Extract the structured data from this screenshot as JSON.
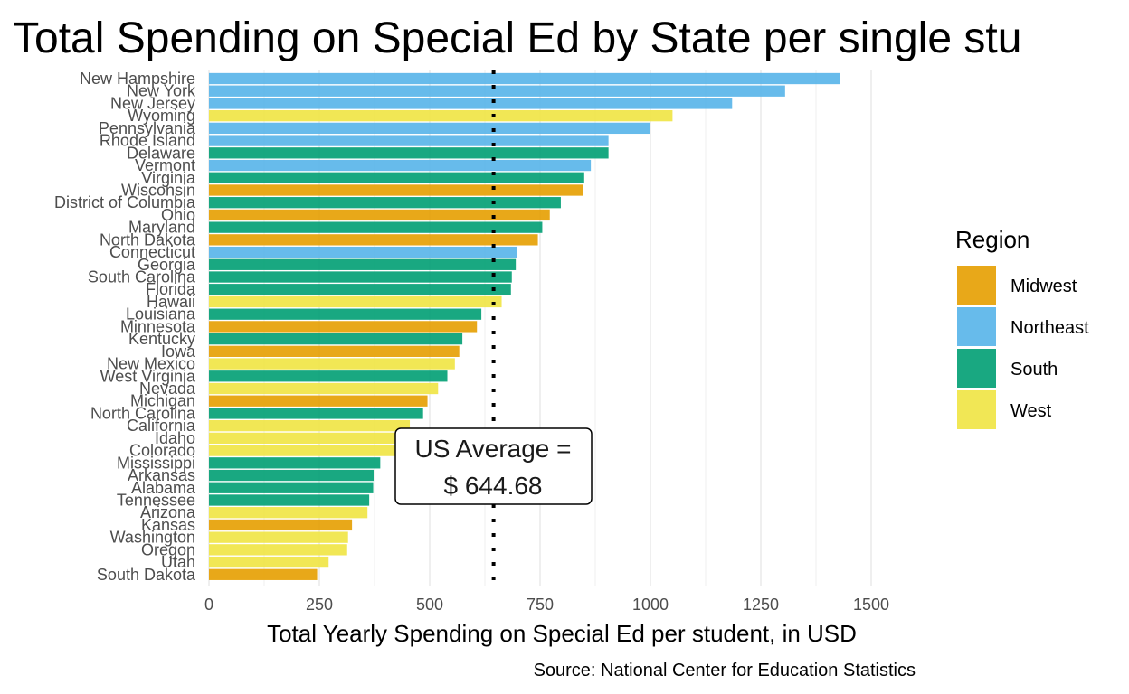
{
  "chart_data": {
    "type": "bar",
    "orientation": "horizontal",
    "title": "Total Spending on Special Ed by State per single stu",
    "xlabel": "Total Yearly Spending on Special Ed per student, in USD",
    "ylabel": "",
    "caption": "Source: National Center for Education Statistics",
    "xlim": [
      0,
      1500
    ],
    "x_ticks": [
      0,
      250,
      500,
      750,
      1000,
      1250,
      1500
    ],
    "x_tick_labels": [
      "0",
      "250",
      "500",
      "750",
      "1000",
      "1250",
      "1500"
    ],
    "grid": "vertical",
    "legend": {
      "title": "Region",
      "position": "right",
      "entries": [
        {
          "label": "Midwest",
          "color": "#E69F00"
        },
        {
          "label": "Northeast",
          "color": "#56B4E9"
        },
        {
          "label": "South",
          "color": "#009E73"
        },
        {
          "label": "West",
          "color": "#F0E442"
        }
      ]
    },
    "reference_line": {
      "value": 644.68,
      "style": "dotted",
      "label_line1": "US Average =",
      "label_line2": "$ 644.68"
    },
    "bars": [
      {
        "state": "New Hampshire",
        "region": "Northeast",
        "value": 1430
      },
      {
        "state": "New York",
        "region": "Northeast",
        "value": 1305
      },
      {
        "state": "New Jersey",
        "region": "Northeast",
        "value": 1185
      },
      {
        "state": "Wyoming",
        "region": "West",
        "value": 1050
      },
      {
        "state": "Pennsylvania",
        "region": "Northeast",
        "value": 1000
      },
      {
        "state": "Rhode Island",
        "region": "Northeast",
        "value": 905
      },
      {
        "state": "Delaware",
        "region": "South",
        "value": 905
      },
      {
        "state": "Vermont",
        "region": "Northeast",
        "value": 865
      },
      {
        "state": "Virginia",
        "region": "South",
        "value": 850
      },
      {
        "state": "Wisconsin",
        "region": "Midwest",
        "value": 848
      },
      {
        "state": "District of Columbia",
        "region": "South",
        "value": 797
      },
      {
        "state": "Ohio",
        "region": "Midwest",
        "value": 772
      },
      {
        "state": "Maryland",
        "region": "South",
        "value": 755
      },
      {
        "state": "North Dakota",
        "region": "Midwest",
        "value": 745
      },
      {
        "state": "Connecticut",
        "region": "Northeast",
        "value": 698
      },
      {
        "state": "Georgia",
        "region": "South",
        "value": 695
      },
      {
        "state": "South Carolina",
        "region": "South",
        "value": 686
      },
      {
        "state": "Florida",
        "region": "South",
        "value": 684
      },
      {
        "state": "Hawaii",
        "region": "West",
        "value": 663
      },
      {
        "state": "Louisiana",
        "region": "South",
        "value": 617
      },
      {
        "state": "Minnesota",
        "region": "Midwest",
        "value": 607
      },
      {
        "state": "Kentucky",
        "region": "South",
        "value": 574
      },
      {
        "state": "Iowa",
        "region": "Midwest",
        "value": 567
      },
      {
        "state": "New Mexico",
        "region": "West",
        "value": 557
      },
      {
        "state": "West Virginia",
        "region": "South",
        "value": 540
      },
      {
        "state": "Nevada",
        "region": "West",
        "value": 519
      },
      {
        "state": "Michigan",
        "region": "Midwest",
        "value": 495
      },
      {
        "state": "North Carolina",
        "region": "South",
        "value": 485
      },
      {
        "state": "California",
        "region": "West",
        "value": 455
      },
      {
        "state": "Idaho",
        "region": "West",
        "value": 440
      },
      {
        "state": "Colorado",
        "region": "West",
        "value": 430
      },
      {
        "state": "Mississippi",
        "region": "South",
        "value": 388
      },
      {
        "state": "Arkansas",
        "region": "South",
        "value": 373
      },
      {
        "state": "Alabama",
        "region": "South",
        "value": 372
      },
      {
        "state": "Tennessee",
        "region": "South",
        "value": 363
      },
      {
        "state": "Arizona",
        "region": "West",
        "value": 359
      },
      {
        "state": "Kansas",
        "region": "Midwest",
        "value": 324
      },
      {
        "state": "Washington",
        "region": "West",
        "value": 315
      },
      {
        "state": "Oregon",
        "region": "West",
        "value": 313
      },
      {
        "state": "Utah",
        "region": "West",
        "value": 271
      },
      {
        "state": "South Dakota",
        "region": "Midwest",
        "value": 245
      }
    ]
  }
}
